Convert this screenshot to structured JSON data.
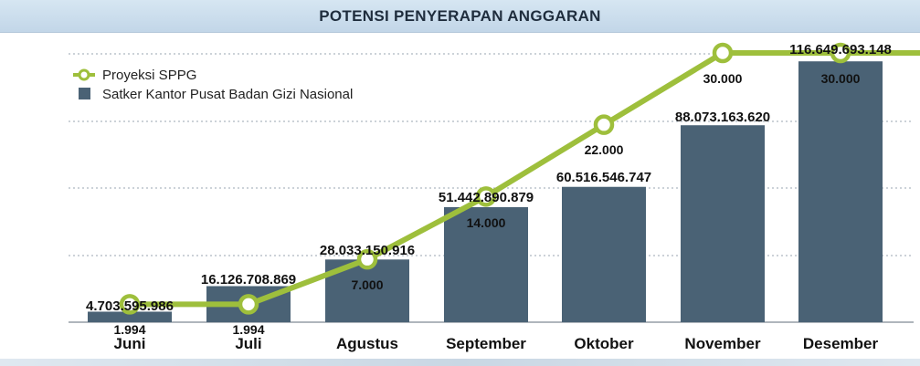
{
  "title": "POTENSI PENYERAPAN ANGGARAN",
  "colors": {
    "bar": "#4a6275",
    "line": "#9ebf3c",
    "marker_fill": "#ffffff",
    "grid": "#9aa6b0",
    "text": "#111111"
  },
  "chart_data": {
    "type": "bar",
    "categories": [
      "Juni",
      "Juli",
      "Agustus",
      "September",
      "Oktober",
      "November",
      "Desember"
    ],
    "series": [
      {
        "name": "Satker Kantor Pusat Badan Gizi Nasional",
        "type": "bar",
        "values": [
          4703595986,
          16126708869,
          28033150916,
          51442890879,
          60516546747,
          88073163620,
          116649693148
        ],
        "labels": [
          "4.703.595.986",
          "16.126.708.869",
          "28.033.150.916",
          "51.442.890.879",
          "60.516.546.747",
          "88.073.163.620",
          "116.649.693.148"
        ]
      },
      {
        "name": "Proyeksi SPPG",
        "type": "line",
        "values": [
          1994,
          1994,
          7000,
          14000,
          22000,
          30000,
          30000
        ],
        "labels": [
          "1.994",
          "1.994",
          "7.000",
          "14.000",
          "22.000",
          "30.000",
          "30.000"
        ]
      }
    ],
    "legend": "top-left",
    "grid": true
  }
}
